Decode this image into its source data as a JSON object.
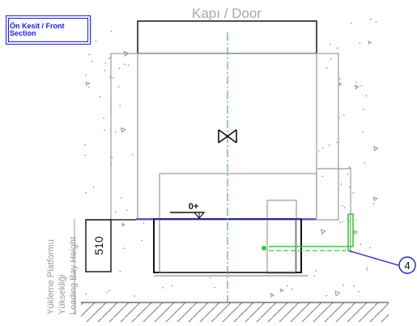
{
  "header": {
    "title": "Kapı / Door"
  },
  "section_label": {
    "line1": "Ön Kesit / Front",
    "line2": "Section"
  },
  "side_label": {
    "line1": "Yükleme Platformu",
    "line2": "Yüksekliği",
    "line3": "Loading Bay Height"
  },
  "dimension": {
    "value": "510"
  },
  "level_marker": {
    "text": "0+"
  },
  "callout": {
    "number": "4"
  },
  "colors": {
    "section_blue": "#1a1aff",
    "green": "#33cc33",
    "gray": "#9a9a9a",
    "callout_blue": "#2020e0"
  }
}
